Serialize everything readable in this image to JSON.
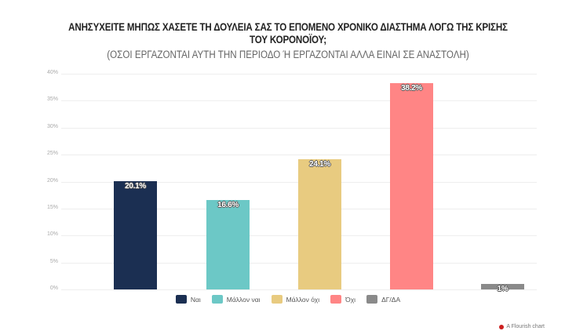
{
  "header": {
    "title_line1": "ΑΝΗΣΥΧΕΙΤΕ ΜΗΠΩΣ ΧΑΣΕΤΕ ΤΗ ΔΟΥΛΕΙΑ ΣΑΣ ΤΟ ΕΠΟΜΕΝΟ ΧΡΟΝΙΚΟ ΔΙΑΣΤΗΜΑ ΛΟΓΩ ΤΗΣ ΚΡΙΣΗΣ",
    "title_line2": "ΤΟΥ ΚΟΡΟΝΟΪΟΥ;",
    "subtitle": "(ΟΣΟΙ ΕΡΓΑΖΟΝΤΑΙ ΑΥΤΗ ΤΗΝ ΠΕΡΙΟΔΟ Ή ΕΡΓΑΖΟΝΤΑΙ ΑΛΛΑ ΕΙΝΑΙ ΣΕ ΑΝΑΣΤΟΛΗ)"
  },
  "yaxis": {
    "ticks": [
      "0%",
      "5%",
      "10%",
      "15%",
      "20%",
      "25%",
      "30%",
      "35%",
      "40%"
    ]
  },
  "bars": [
    {
      "label": "Ναι",
      "value_label": "20.1%",
      "color": "#1b2f52"
    },
    {
      "label": "Μάλλον ναι",
      "value_label": "16.6%",
      "color": "#6cc8c6"
    },
    {
      "label": "Μάλλον όχι",
      "value_label": "24.1%",
      "color": "#e8cb80"
    },
    {
      "label": "Όχι",
      "value_label": "38.2%",
      "color": "#ff8585"
    },
    {
      "label": "ΔΓ/ΔΑ",
      "value_label": "1%",
      "color": "#8a8a8a"
    }
  ],
  "credit": "A Flourish chart",
  "chart_data": {
    "type": "bar",
    "title": "ΑΝΗΣΥΧΕΙΤΕ ΜΗΠΩΣ ΧΑΣΕΤΕ ΤΗ ΔΟΥΛΕΙΑ ΣΑΣ ΤΟ ΕΠΟΜΕΝΟ ΧΡΟΝΙΚΟ ΔΙΑΣΤΗΜΑ ΛΟΓΩ ΤΗΣ ΚΡΙΣΗΣ ΤΟΥ ΚΟΡΟΝΟΪΟΥ;",
    "subtitle": "(ΟΣΟΙ ΕΡΓΑΖΟΝΤΑΙ ΑΥΤΗ ΤΗΝ ΠΕΡΙΟΔΟ Ή ΕΡΓΑΖΟΝΤΑΙ ΑΛΛΑ ΕΙΝΑΙ ΣΕ ΑΝΑΣΤΟΛΗ)",
    "categories": [
      "Ναι",
      "Μάλλον ναι",
      "Μάλλον όχι",
      "Όχι",
      "ΔΓ/ΔΑ"
    ],
    "values": [
      20.1,
      16.6,
      24.1,
      38.2,
      1
    ],
    "colors": [
      "#1b2f52",
      "#6cc8c6",
      "#e8cb80",
      "#ff8585",
      "#8a8a8a"
    ],
    "xlabel": "",
    "ylabel": "",
    "ylim": [
      0,
      40
    ],
    "yticks": [
      "0%",
      "5%",
      "10%",
      "15%",
      "20%",
      "25%",
      "30%",
      "35%",
      "40%"
    ],
    "grid": true,
    "legend_position": "bottom"
  }
}
